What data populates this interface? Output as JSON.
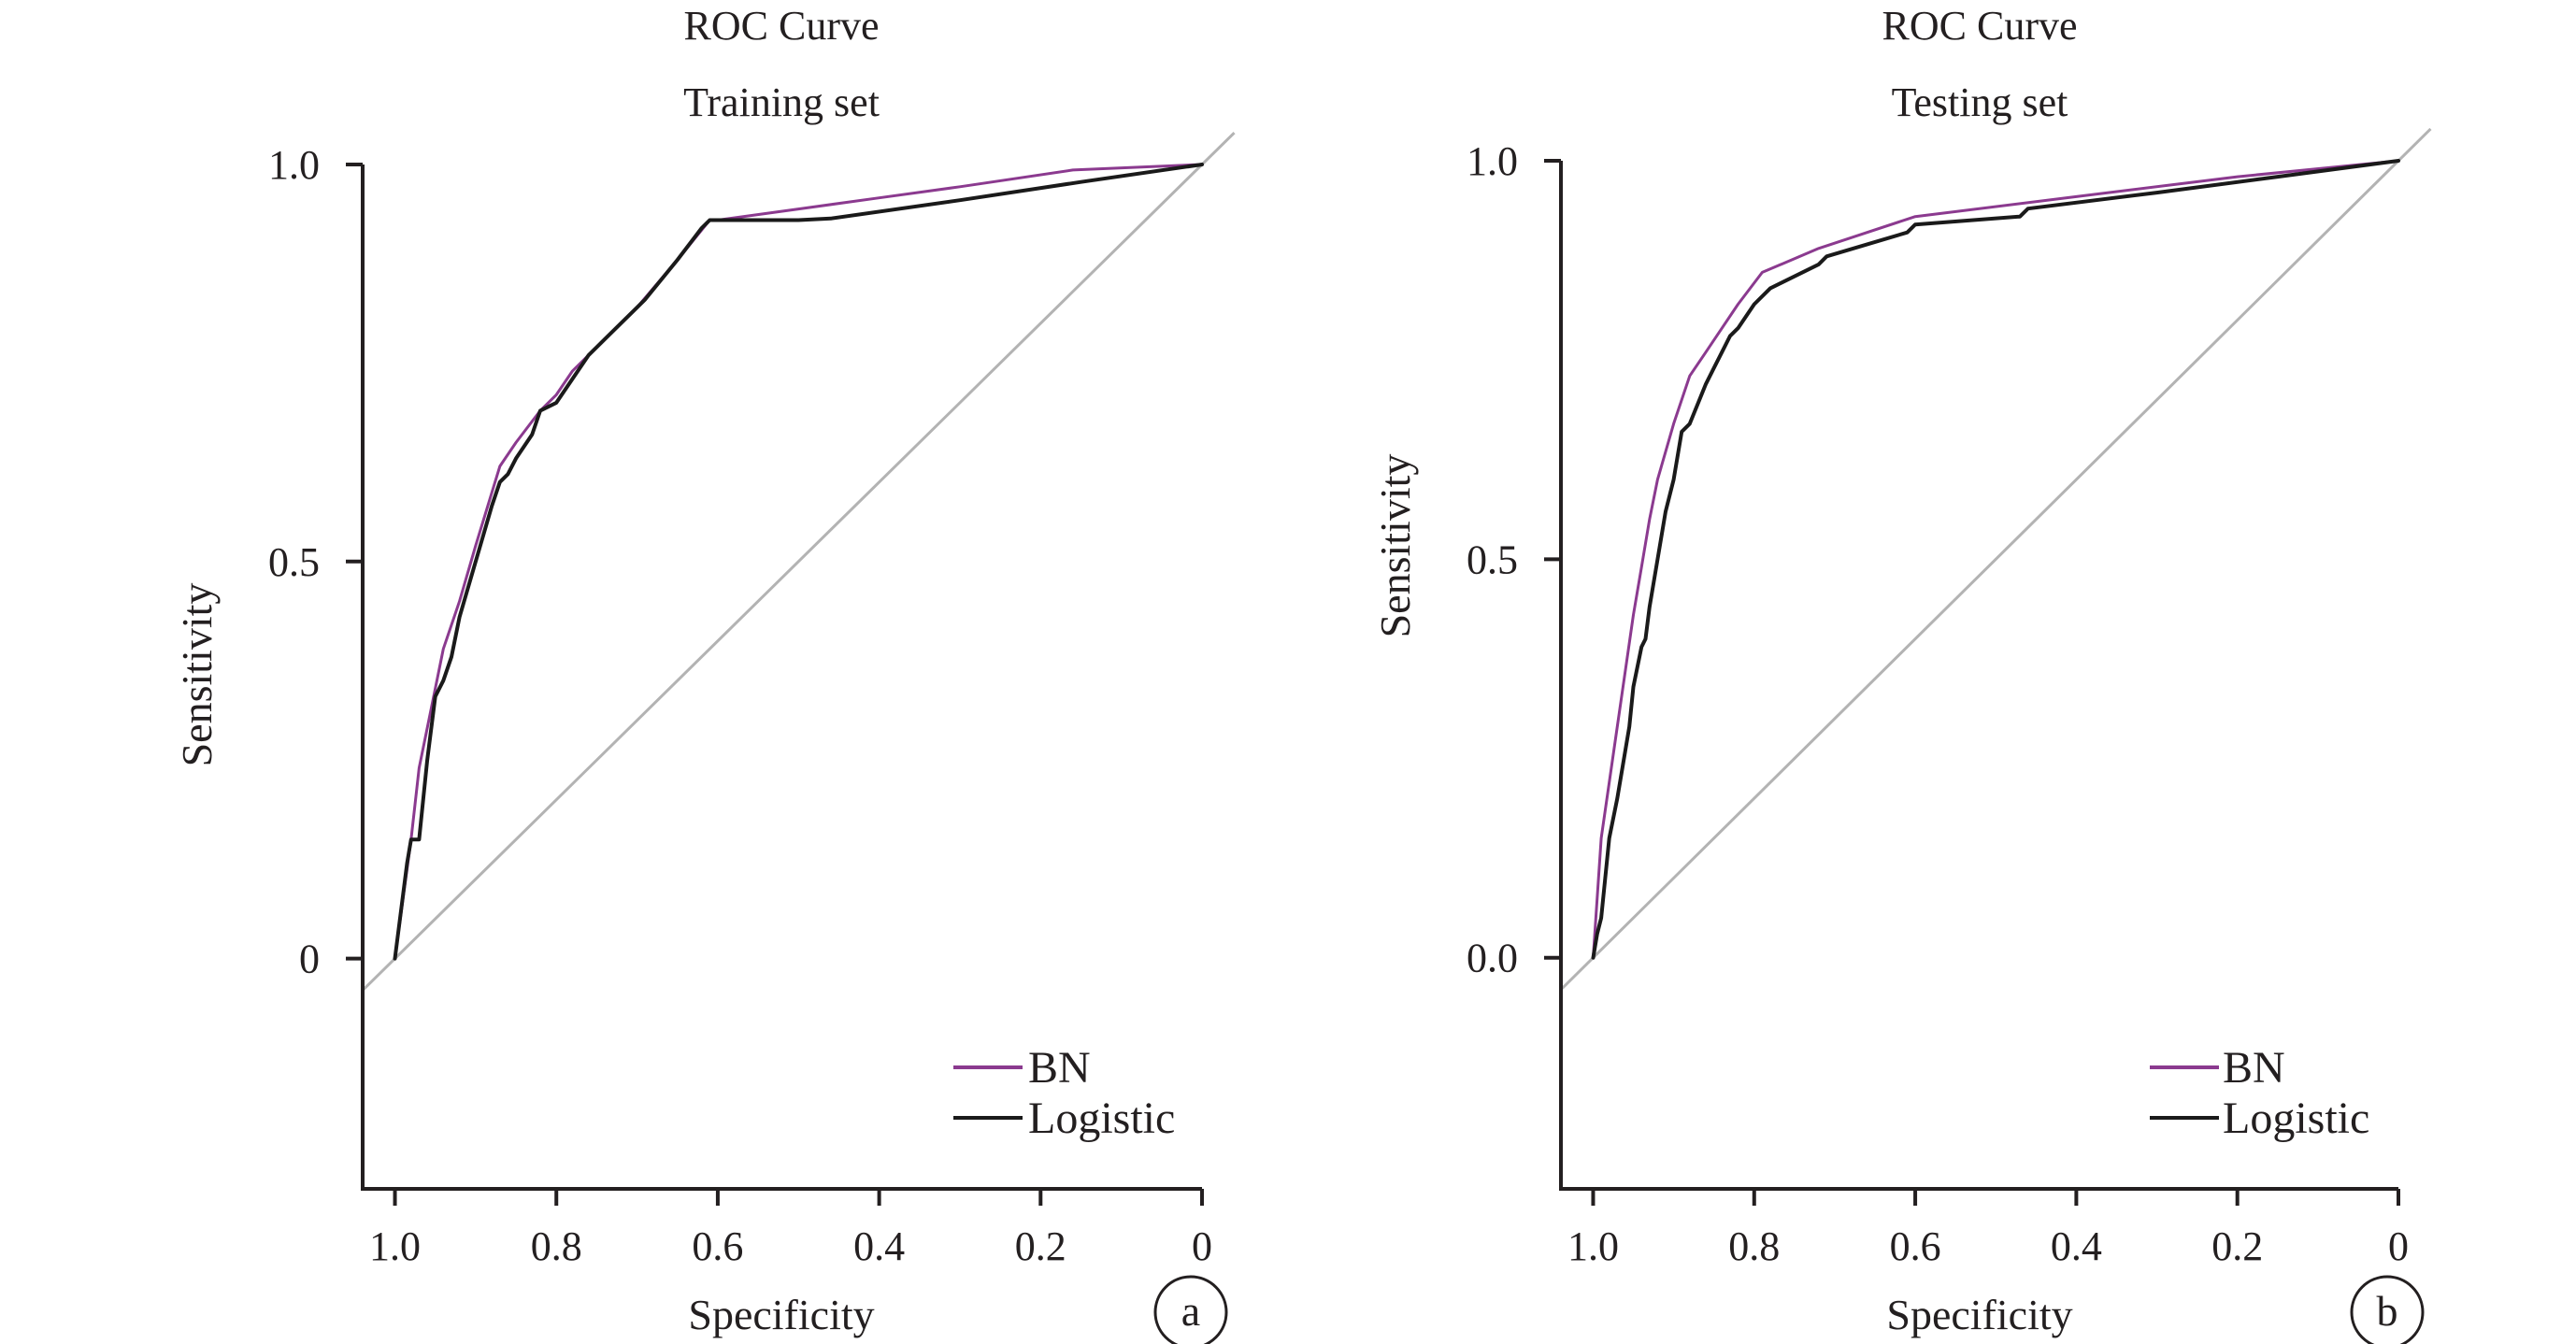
{
  "colors": {
    "bn": "#8b3a8f",
    "logistic": "#1a1a1a",
    "reference": "#b3b3b3",
    "axis": "#231f20"
  },
  "chart_data": [
    {
      "type": "line",
      "panel_letter": "a",
      "title": "ROC Curve",
      "subtitle": "Training set",
      "xlabel": "Specificity",
      "ylabel": "Sensitivity",
      "x_reversed": true,
      "xlim": [
        1.04,
        0
      ],
      "ylim": [
        -0.29,
        1.0
      ],
      "xticks": [
        1.0,
        0.8,
        0.6,
        0.4,
        0.2,
        0
      ],
      "xtick_labels": [
        "1.0",
        "0.8",
        "0.6",
        "0.4",
        "0.2",
        "0"
      ],
      "yticks": [
        0,
        0.5,
        1.0
      ],
      "ytick_labels": [
        "0",
        "0.5",
        "1.0"
      ],
      "reference_line": {
        "x": [
          1.04,
          -0.04
        ],
        "y": [
          -0.04,
          1.04
        ]
      },
      "legend": {
        "placement": "bottom-right",
        "entries": [
          "BN",
          "Logistic"
        ]
      },
      "series": [
        {
          "name": "BN",
          "x": [
            1.0,
            0.98,
            0.97,
            0.95,
            0.94,
            0.92,
            0.9,
            0.87,
            0.85,
            0.82,
            0.8,
            0.78,
            0.75,
            0.72,
            0.7,
            0.65,
            0.61,
            0.6,
            0.5,
            0.4,
            0.3,
            0.16,
            0
          ],
          "y": [
            0.0,
            0.15,
            0.24,
            0.34,
            0.39,
            0.45,
            0.52,
            0.62,
            0.65,
            0.69,
            0.71,
            0.74,
            0.77,
            0.8,
            0.82,
            0.88,
            0.93,
            0.93,
            0.944,
            0.958,
            0.972,
            0.993,
            1.0
          ]
        },
        {
          "name": "Logistic",
          "x": [
            1.0,
            0.985,
            0.98,
            0.97,
            0.96,
            0.95,
            0.94,
            0.93,
            0.92,
            0.9,
            0.88,
            0.87,
            0.86,
            0.85,
            0.83,
            0.82,
            0.8,
            0.78,
            0.76,
            0.74,
            0.72,
            0.7,
            0.69,
            0.65,
            0.62,
            0.61,
            0.6,
            0.5,
            0.46,
            0.3,
            0.15,
            0
          ],
          "y": [
            0.0,
            0.12,
            0.15,
            0.15,
            0.25,
            0.33,
            0.35,
            0.38,
            0.43,
            0.5,
            0.57,
            0.6,
            0.61,
            0.63,
            0.66,
            0.69,
            0.7,
            0.73,
            0.76,
            0.78,
            0.8,
            0.82,
            0.83,
            0.88,
            0.92,
            0.93,
            0.93,
            0.93,
            0.932,
            0.955,
            0.978,
            1.0
          ]
        }
      ]
    },
    {
      "type": "line",
      "panel_letter": "b",
      "title": "ROC Curve",
      "subtitle": "Testing set",
      "xlabel": "Specificity",
      "ylabel": "Sensitivity",
      "x_reversed": true,
      "xlim": [
        1.04,
        0
      ],
      "ylim": [
        -0.29,
        1.0
      ],
      "xticks": [
        1.0,
        0.8,
        0.6,
        0.4,
        0.2,
        0
      ],
      "xtick_labels": [
        "1.0",
        "0.8",
        "0.6",
        "0.4",
        "0.2",
        "0"
      ],
      "yticks": [
        0.0,
        0.5,
        1.0
      ],
      "ytick_labels": [
        "0.0",
        "0.5",
        "1.0"
      ],
      "reference_line": {
        "x": [
          1.04,
          -0.04
        ],
        "y": [
          -0.04,
          1.04
        ]
      },
      "legend": {
        "placement": "bottom-right",
        "entries": [
          "BN",
          "Logistic"
        ]
      },
      "series": [
        {
          "name": "BN",
          "x": [
            1.0,
            0.99,
            0.98,
            0.97,
            0.96,
            0.95,
            0.94,
            0.93,
            0.92,
            0.9,
            0.88,
            0.86,
            0.84,
            0.82,
            0.79,
            0.72,
            0.6,
            0.4,
            0.2,
            0
          ],
          "y": [
            0.0,
            0.15,
            0.22,
            0.29,
            0.36,
            0.43,
            0.49,
            0.55,
            0.6,
            0.67,
            0.73,
            0.76,
            0.79,
            0.82,
            0.86,
            0.89,
            0.93,
            0.955,
            0.98,
            1.0
          ]
        },
        {
          "name": "Logistic",
          "x": [
            1.0,
            0.995,
            0.99,
            0.985,
            0.98,
            0.97,
            0.96,
            0.955,
            0.95,
            0.94,
            0.935,
            0.93,
            0.92,
            0.91,
            0.9,
            0.89,
            0.88,
            0.86,
            0.85,
            0.84,
            0.83,
            0.82,
            0.8,
            0.78,
            0.72,
            0.71,
            0.61,
            0.6,
            0.47,
            0.46,
            0.3,
            0.15,
            0
          ],
          "y": [
            0.0,
            0.03,
            0.05,
            0.1,
            0.15,
            0.2,
            0.26,
            0.29,
            0.34,
            0.39,
            0.4,
            0.44,
            0.5,
            0.56,
            0.6,
            0.66,
            0.67,
            0.72,
            0.74,
            0.76,
            0.78,
            0.79,
            0.82,
            0.84,
            0.87,
            0.88,
            0.91,
            0.92,
            0.93,
            0.94,
            0.96,
            0.98,
            1.0
          ]
        }
      ]
    }
  ]
}
